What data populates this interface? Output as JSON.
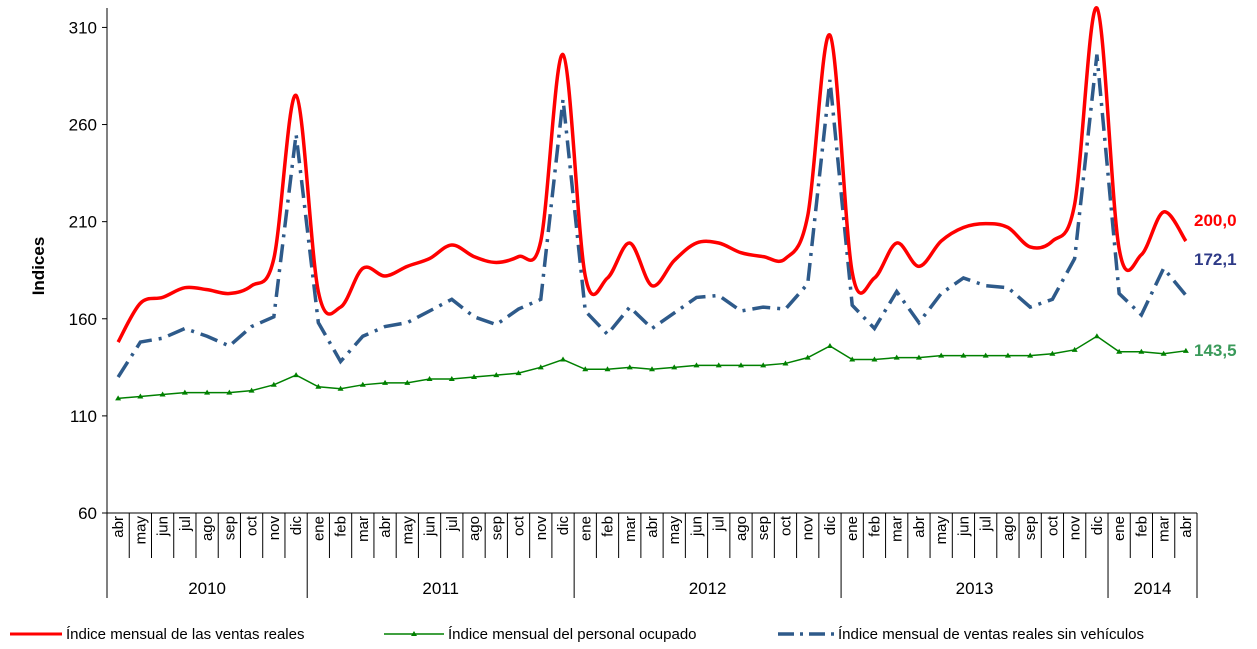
{
  "chart_data": {
    "type": "line",
    "ylabel": "Indices",
    "ylim": [
      60,
      320
    ],
    "yticks": [
      "60",
      "110",
      "160",
      "210",
      "260",
      "310"
    ],
    "grid": false,
    "legend_position": "bottom",
    "x": [
      "abr",
      "may",
      "jun",
      "jul",
      "ago",
      "sep",
      "oct",
      "nov",
      "dic",
      "ene",
      "feb",
      "mar",
      "abr",
      "may",
      "jun",
      "jul",
      "ago",
      "sep",
      "oct",
      "nov",
      "dic",
      "ene",
      "feb",
      "mar",
      "abr",
      "may",
      "jun",
      "jul",
      "ago",
      "sep",
      "oct",
      "nov",
      "dic",
      "ene",
      "feb",
      "mar",
      "abr",
      "may",
      "jun",
      "jul",
      "ago",
      "sep",
      "oct",
      "nov",
      "dic",
      "ene",
      "feb",
      "mar",
      "abr"
    ],
    "years": [
      {
        "label": "2010",
        "start": 0,
        "end": 8
      },
      {
        "label": "2011",
        "start": 9,
        "end": 20
      },
      {
        "label": "2012",
        "start": 21,
        "end": 32
      },
      {
        "label": "2013",
        "start": 33,
        "end": 44
      },
      {
        "label": "2014",
        "start": 45,
        "end": 48
      }
    ],
    "series": [
      {
        "name": "Índice mensual de las ventas reales",
        "color": "#ff0000",
        "style": "solid",
        "end_label": "200,0",
        "values": [
          148,
          168,
          171,
          176,
          175,
          173,
          177,
          191,
          275,
          174,
          166,
          186,
          182,
          187,
          191,
          198,
          192,
          189,
          192,
          200,
          296,
          182,
          181,
          199,
          177,
          190,
          199,
          199,
          194,
          192,
          191,
          213,
          306,
          184,
          181,
          199,
          187,
          200,
          207,
          209,
          207,
          197,
          200,
          219,
          320,
          196,
          193,
          215,
          200
        ]
      },
      {
        "name": "Índice mensual del personal ocupado",
        "color": "#008000",
        "style": "solid-markers",
        "end_label": "143,5",
        "values": [
          119,
          120,
          121,
          122,
          122,
          122,
          123,
          126,
          131,
          125,
          124,
          126,
          127,
          127,
          129,
          129,
          130,
          131,
          132,
          135,
          139,
          134,
          134,
          135,
          134,
          135,
          136,
          136,
          136,
          136,
          137,
          140,
          146,
          139,
          139,
          140,
          140,
          141,
          141,
          141,
          141,
          141,
          142,
          144,
          151,
          143,
          143,
          142,
          143.5
        ]
      },
      {
        "name": "Índice mensual de ventas reales sin vehículos",
        "color": "#2e5a8a",
        "style": "dash-dot",
        "end_label": "172,1",
        "values": [
          130,
          148,
          150,
          155,
          151,
          146,
          156,
          161,
          255,
          158,
          138,
          151,
          156,
          158,
          164,
          170,
          161,
          157,
          165,
          170,
          273,
          164,
          152,
          166,
          155,
          163,
          171,
          172,
          164,
          166,
          165,
          178,
          283,
          167,
          155,
          174,
          158,
          173,
          181,
          177,
          176,
          166,
          170,
          191,
          296,
          173,
          162,
          186,
          172.1
        ]
      }
    ]
  },
  "colors": {
    "end_label_red": "#ff0000",
    "end_label_blue": "#2e3a87",
    "end_label_green": "#3a9a5a",
    "axis": "#000000"
  }
}
